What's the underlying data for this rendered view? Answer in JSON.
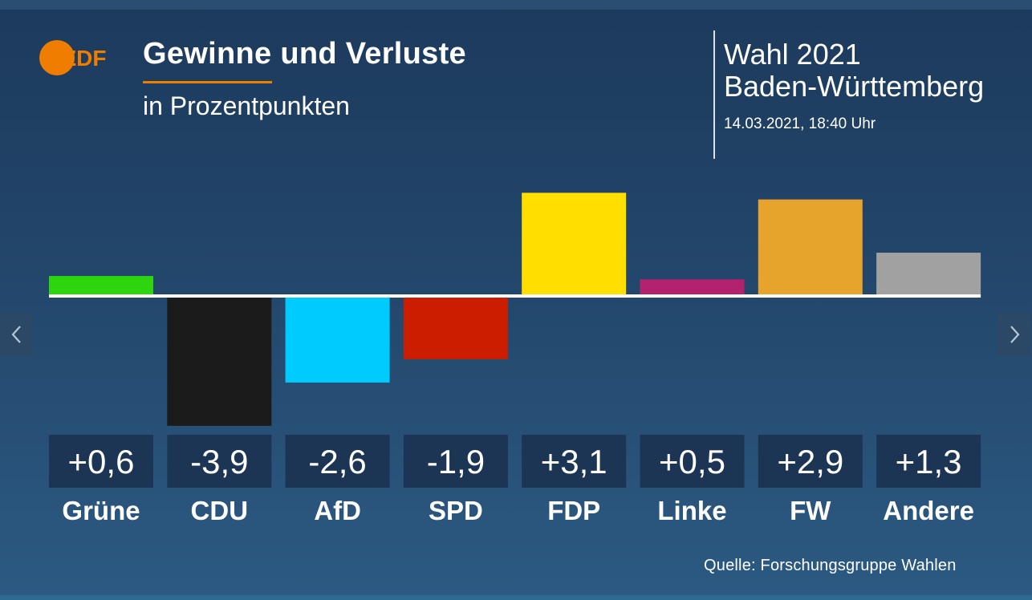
{
  "header": {
    "logo_text": "ZDF",
    "title": "Gewinne und Verluste",
    "subtitle": "in Prozentpunkten",
    "election": "Wahl 2021",
    "region": "Baden-Württemberg",
    "timestamp": "14.03.2021, 18:40 Uhr"
  },
  "footer": {
    "source": "Quelle: Forschungsgruppe Wahlen"
  },
  "navigation": {
    "prev_icon": "chevron-left-icon",
    "next_icon": "chevron-right-icon"
  },
  "colors": {
    "accent": "#ef7d00",
    "label_box": "#1c3554"
  },
  "chart_data": {
    "type": "bar",
    "title": "Gewinne und Verluste",
    "ylabel": "in Prozentpunkten",
    "categories": [
      "Grüne",
      "CDU",
      "AfD",
      "SPD",
      "FDP",
      "Linke",
      "FW",
      "Andere"
    ],
    "values": [
      0.6,
      -3.9,
      -2.6,
      -1.9,
      3.1,
      0.5,
      2.9,
      1.3
    ],
    "value_labels": [
      "+0,6",
      "-3,9",
      "-2,6",
      "-1,9",
      "+3,1",
      "+0,5",
      "+2,9",
      "+1,3"
    ],
    "colors": [
      "#2dd50e",
      "#1b1b1b",
      "#00cbff",
      "#cc1d00",
      "#ffde00",
      "#b3226c",
      "#e7a42c",
      "#a1a1a1"
    ],
    "ylim": [
      -3.9,
      3.1
    ],
    "grid": false,
    "legend": "none"
  }
}
